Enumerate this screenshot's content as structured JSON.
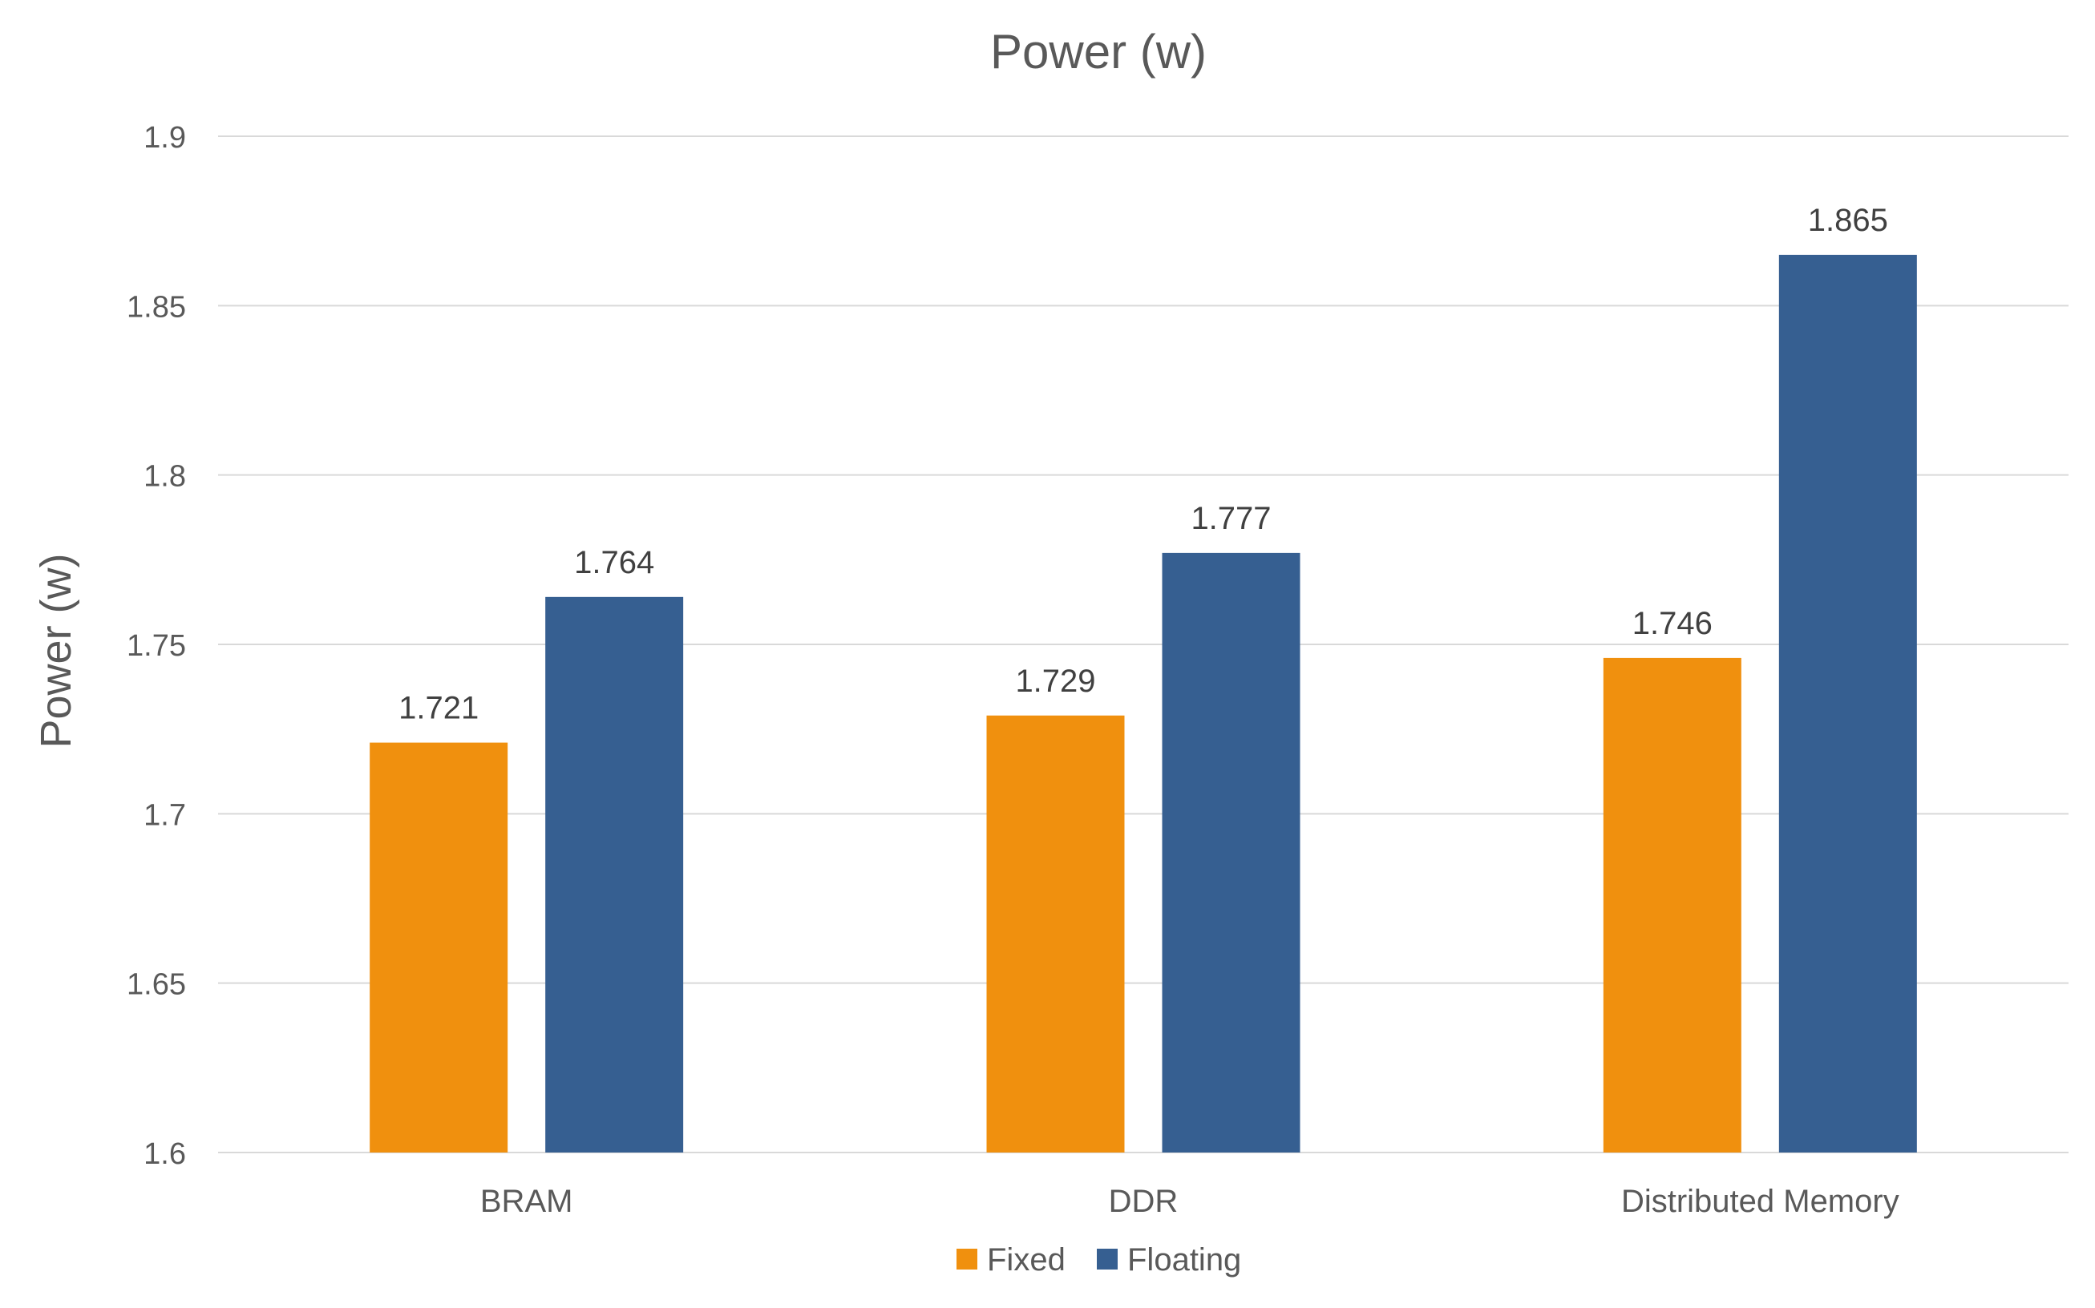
{
  "chart_data": {
    "type": "bar",
    "title": "Power (w)",
    "xlabel": "",
    "ylabel": "Power (w)",
    "ylim": [
      1.6,
      1.9
    ],
    "yticks": [
      1.6,
      1.65,
      1.7,
      1.75,
      1.8,
      1.85,
      1.9
    ],
    "ytick_labels": [
      "1.6",
      "1.65",
      "1.7",
      "1.75",
      "1.8",
      "1.85",
      "1.9"
    ],
    "grid": true,
    "legend_position": "bottom",
    "categories": [
      "BRAM",
      "DDR",
      "Distributed Memory"
    ],
    "series": [
      {
        "name": "Fixed",
        "color": "#F0900E",
        "values": [
          1.721,
          1.729,
          1.746
        ],
        "labels": [
          "1.721",
          "1.729",
          "1.746"
        ]
      },
      {
        "name": "Floating",
        "color": "#365F91",
        "values": [
          1.764,
          1.777,
          1.865
        ],
        "labels": [
          "1.764",
          "1.777",
          "1.865"
        ]
      }
    ]
  }
}
